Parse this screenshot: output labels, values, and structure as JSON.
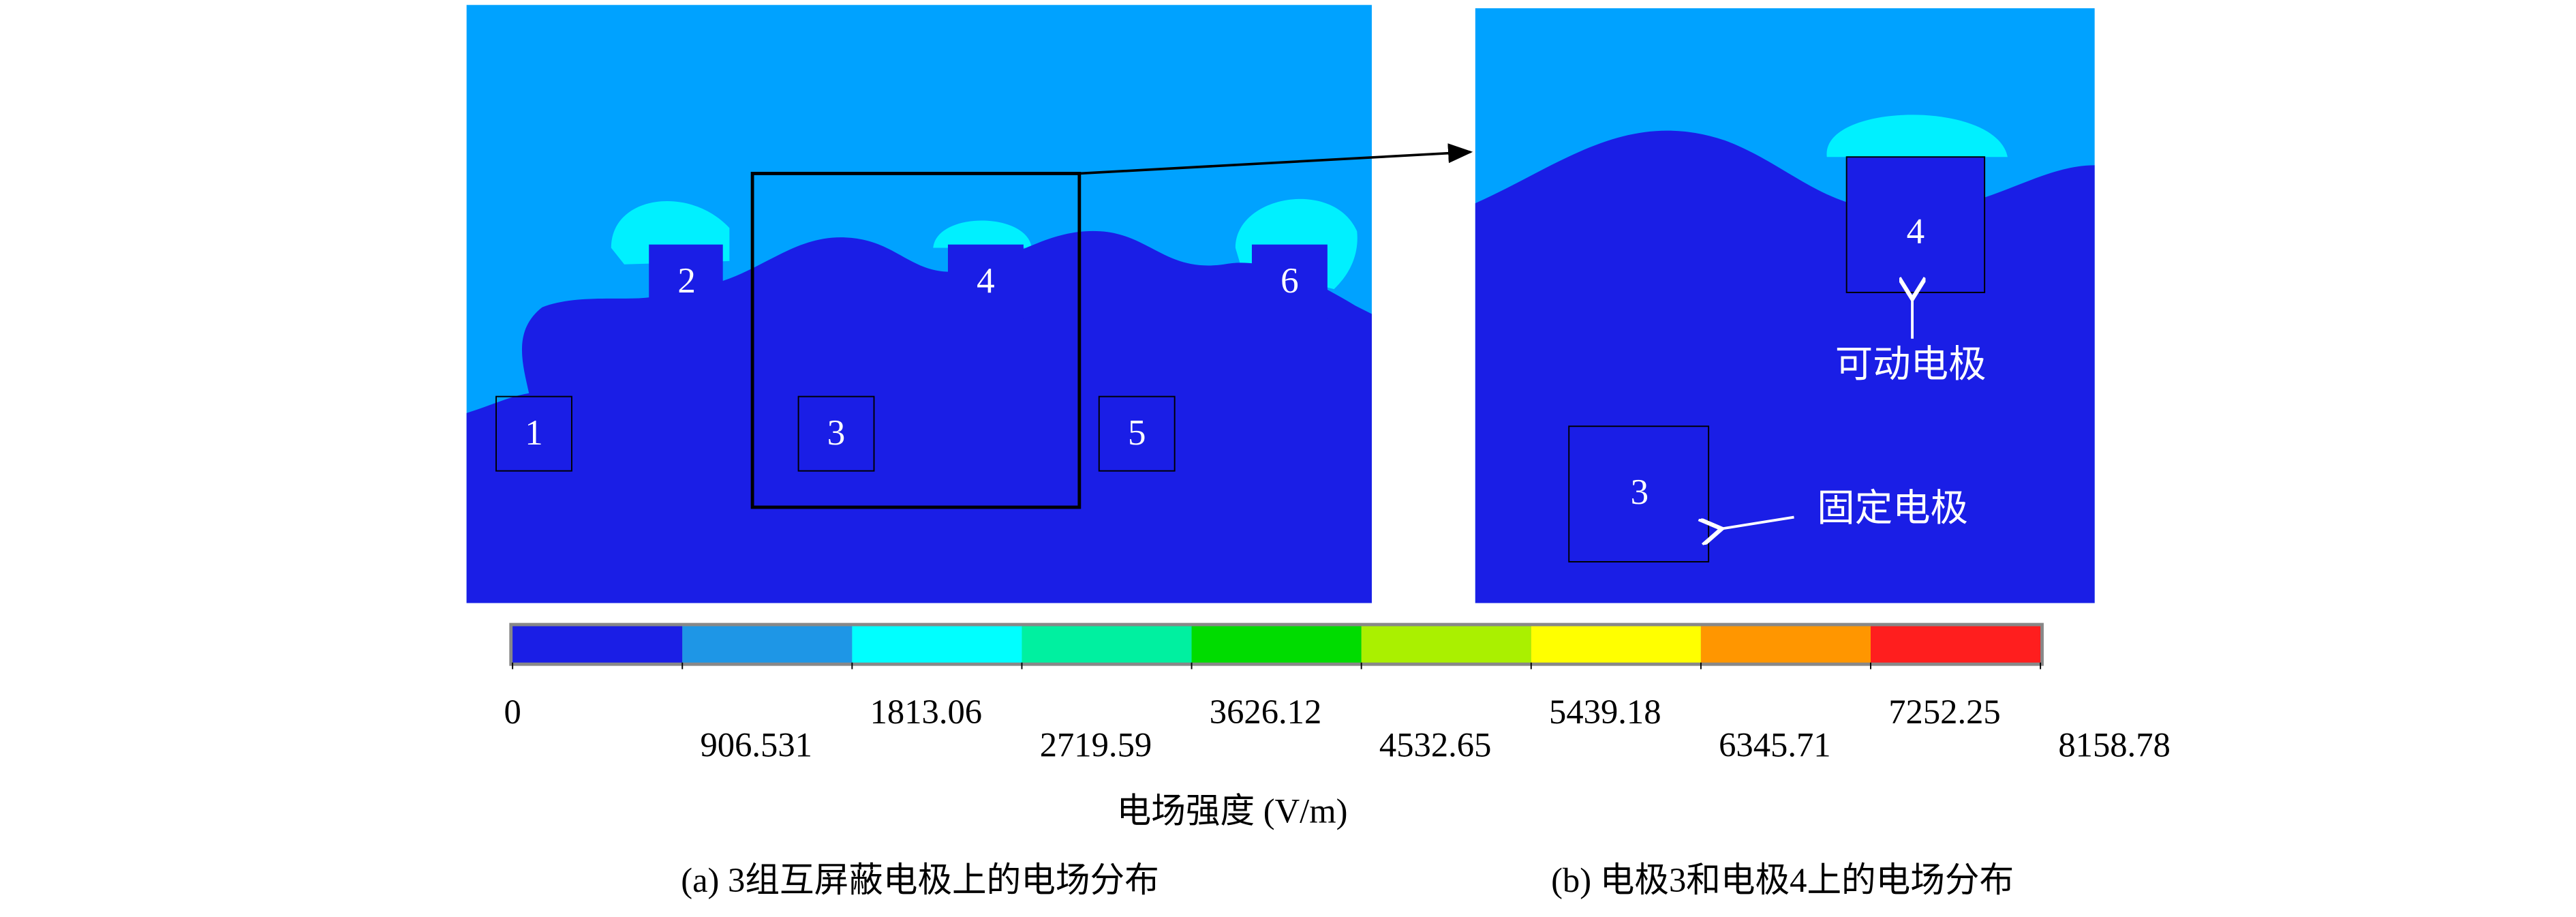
{
  "panel_a": {
    "electrodes": [
      "1",
      "2",
      "3",
      "4",
      "5",
      "6"
    ]
  },
  "panel_b": {
    "electrodes": [
      "4",
      "3"
    ],
    "movable_label": "可动电极",
    "fixed_label": "固定电极"
  },
  "colorbar": {
    "label": "电场强度 (V/m)",
    "ticks": [
      "0",
      "906.531",
      "1813.06",
      "2719.59",
      "3626.12",
      "4532.65",
      "5439.18",
      "6345.71",
      "7252.25",
      "8158.78"
    ],
    "colors": [
      "#1a1ee6",
      "#1e96e6",
      "#00ffff",
      "#00f0a0",
      "#00dc00",
      "#aaf000",
      "#ffff00",
      "#ff9600",
      "#ff1e1e"
    ]
  },
  "captions": [
    "(a) 3组互屏蔽电极上的电场分布",
    "(b) 电极3和电极4上的电场分布"
  ]
}
